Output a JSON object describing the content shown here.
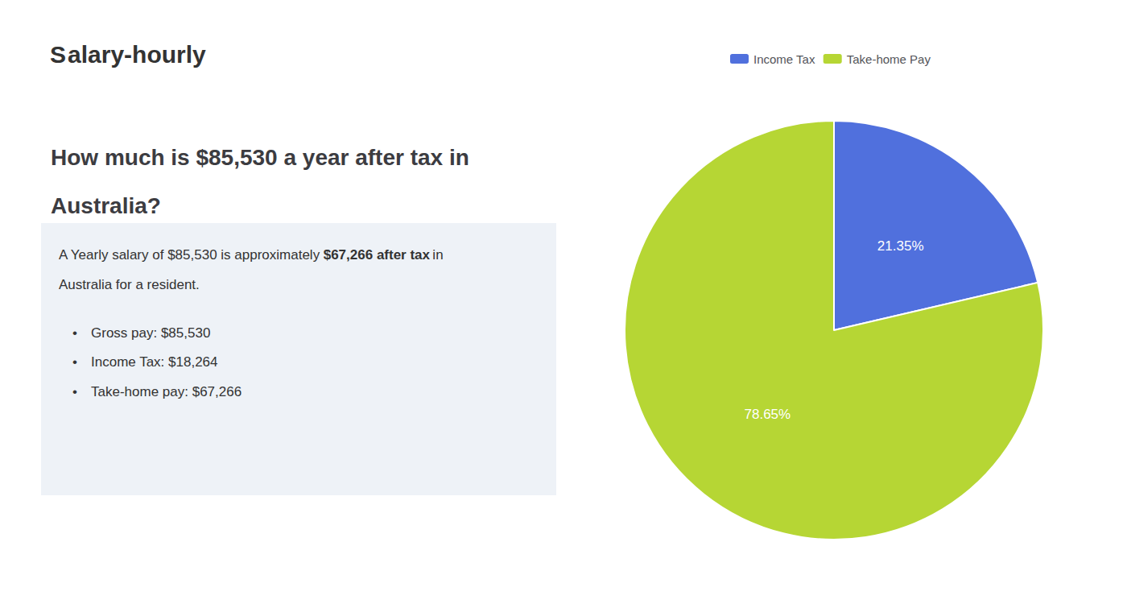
{
  "chart_data": {
    "type": "pie",
    "title": "How much is $85,530 a year after tax in\nAustralia?",
    "annotations": [
      "S",
      "alary-hourly",
      "A Yearly salary of $85,530 is approximately",
      "$67,266 after tax",
      "in",
      "Australia for a resident.",
      "•",
      "Gross pay: $85,530",
      "Income Tax: $18,264",
      "Take-home pay: $67,266"
    ],
    "categories": [
      "Income Tax",
      "Take-home Pay"
    ],
    "values": [
      21.35,
      78.65
    ],
    "value_labels": [
      "21.35%",
      "78.65%"
    ],
    "data_labels": true,
    "legend": "top"
  }
}
